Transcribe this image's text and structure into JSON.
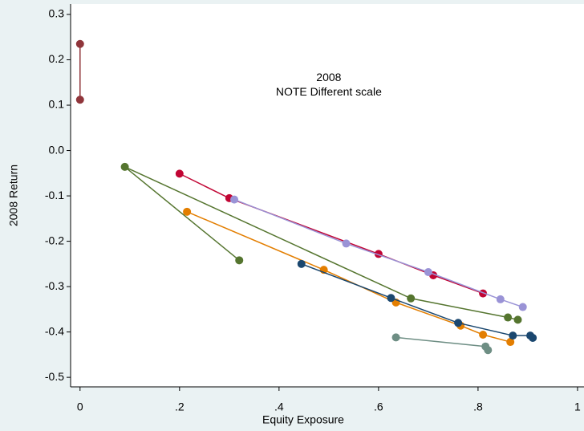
{
  "chart_data": {
    "type": "line",
    "annotations": [
      "2008",
      "NOTE Different scale"
    ],
    "annotation_xy": [
      0.5,
      0.16
    ],
    "xlabel": "Equity Exposure",
    "ylabel": "2008 Return",
    "xlim": [
      -0.019,
      1.013
    ],
    "ylim": [
      -0.521,
      0.323
    ],
    "xticks": [
      0,
      {
        "value": 0.2,
        "label": ".2"
      },
      {
        "value": 0.4,
        "label": ".4"
      },
      {
        "value": 0.6,
        "label": ".6"
      },
      {
        "value": 0.8,
        "label": ".8"
      },
      1
    ],
    "yticks": [
      0.3,
      0.2,
      0.1,
      {
        "value": 0,
        "label": "0.0"
      },
      -0.1,
      -0.2,
      -0.3,
      -0.4,
      -0.5
    ],
    "grid": false,
    "series": [
      {
        "color": "#90353b",
        "x": [
          0,
          0
        ],
        "values": [
          0.235,
          0.112
        ]
      },
      {
        "color": "#c10534",
        "x": [
          0.2,
          0.3,
          0.6,
          0.71,
          0.81
        ],
        "values": [
          -0.051,
          -0.105,
          -0.228,
          -0.275,
          -0.315
        ]
      },
      {
        "color": "#9a93d6",
        "x": [
          0.31,
          0.535,
          0.7,
          0.845,
          0.89
        ],
        "values": [
          -0.108,
          -0.205,
          -0.268,
          -0.328,
          -0.345
        ]
      },
      {
        "color": "#55752f",
        "x": [
          0.32,
          0.09,
          0.665,
          0.86,
          0.88
        ],
        "values": [
          -0.242,
          -0.036,
          -0.326,
          -0.368,
          -0.373
        ]
      },
      {
        "color": "#e37e00",
        "x": [
          0.215,
          0.49,
          0.635,
          0.765,
          0.81,
          0.865
        ],
        "values": [
          -0.135,
          -0.263,
          -0.335,
          -0.386,
          -0.406,
          -0.422
        ]
      },
      {
        "color": "#1a476f",
        "x": [
          0.445,
          0.625,
          0.76,
          0.87,
          0.905,
          0.91
        ],
        "values": [
          -0.25,
          -0.325,
          -0.38,
          -0.408,
          -0.408,
          -0.413
        ]
      },
      {
        "color": "#6e8e84",
        "x": [
          0.635,
          0.815,
          0.82
        ],
        "values": [
          -0.412,
          -0.432,
          -0.44
        ]
      }
    ]
  }
}
